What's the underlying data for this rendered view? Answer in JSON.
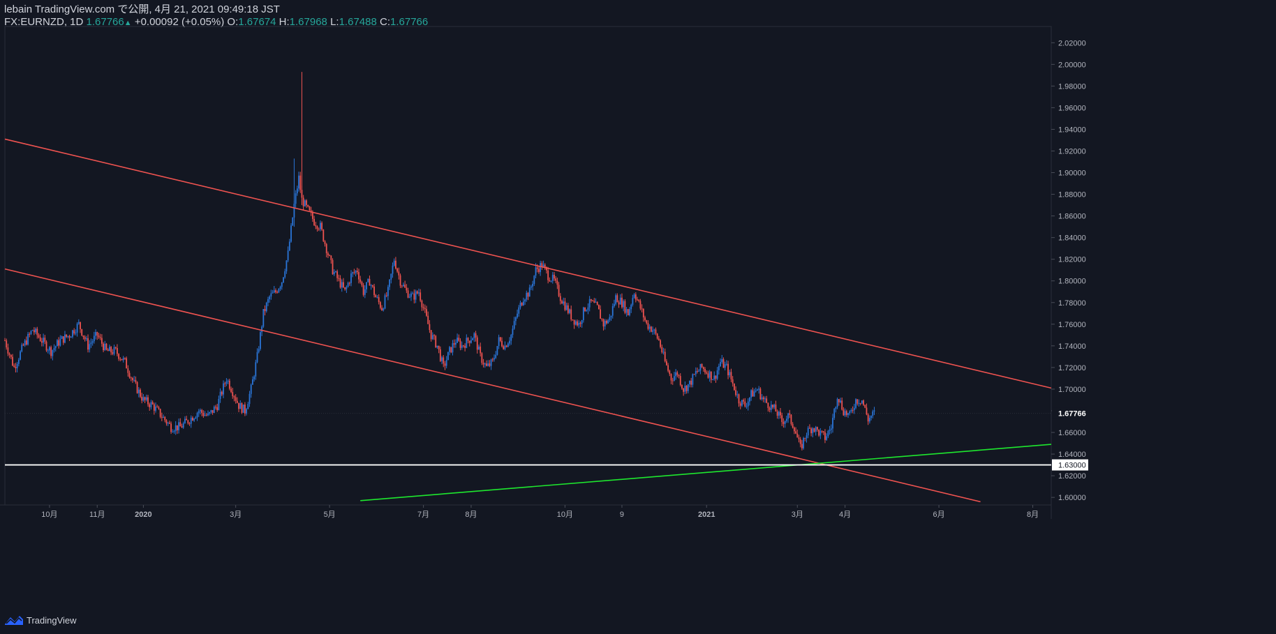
{
  "header": {
    "publish_line": "lebain TradingView.com で公開, 4月 21, 2021 09:49:18 JST",
    "symbol": "FX:EURNZD, 1D",
    "last": "1.67766",
    "change": "+0.00092 (+0.05%)",
    "o_label": "O:",
    "o_value": "1.67674",
    "h_label": "H:",
    "h_value": "1.67968",
    "l_label": "L:",
    "l_value": "1.67488",
    "c_label": "C:",
    "c_value": "1.67766"
  },
  "footer": {
    "brand": "TradingView",
    "logo_icon": "tradingview-logo-icon"
  },
  "chart_data": {
    "type": "candlestick",
    "symbol": "FX:EURNZD",
    "interval": "1D",
    "y_ticks": [
      "2.02000",
      "2.00000",
      "1.98000",
      "1.96000",
      "1.94000",
      "1.92000",
      "1.90000",
      "1.88000",
      "1.86000",
      "1.84000",
      "1.82000",
      "1.80000",
      "1.78000",
      "1.76000",
      "1.74000",
      "1.72000",
      "1.70000",
      "1.68000",
      "1.66000",
      "1.64000",
      "1.62000",
      "1.60000"
    ],
    "ylim": [
      1.593,
      2.035
    ],
    "x_ticks": [
      {
        "label": "10月",
        "d": 29
      },
      {
        "label": "11月",
        "d": 60
      },
      {
        "label": "2020",
        "d": 90
      },
      {
        "label": "3月",
        "d": 150
      },
      {
        "label": "5月",
        "d": 211
      },
      {
        "label": "7月",
        "d": 272
      },
      {
        "label": "8月",
        "d": 303
      },
      {
        "label": "10月",
        "d": 364
      },
      {
        "label": "9",
        "d": 401
      },
      {
        "label": "2021",
        "d": 456
      },
      {
        "label": "3月",
        "d": 515
      },
      {
        "label": "4月",
        "d": 546
      },
      {
        "label": "6月",
        "d": 607
      },
      {
        "label": "8月",
        "d": 668
      }
    ],
    "xlim": [
      0,
      680
    ],
    "price_label": "1.67766",
    "level_label": "1.63000",
    "level": 1.63,
    "colors": {
      "up": "#2a75d8",
      "down": "#ef5350",
      "resistance": "#ef5350",
      "support": "#1ee82e",
      "level": "#ffffff",
      "bg": "#131722"
    },
    "trendlines": [
      {
        "name": "upper-channel",
        "color": "#ef5350",
        "p1": [
          0,
          1.931
        ],
        "p2": [
          680,
          1.701
        ]
      },
      {
        "name": "lower-channel",
        "color": "#ef5350",
        "p1": [
          0,
          1.811
        ],
        "p2": [
          634,
          1.596
        ]
      },
      {
        "name": "support",
        "color": "#1ee82e",
        "p1": [
          231,
          1.597
        ],
        "p2": [
          680,
          1.649
        ]
      }
    ],
    "path": [
      [
        0,
        1.745
      ],
      [
        6,
        1.72
      ],
      [
        12,
        1.74
      ],
      [
        18,
        1.755
      ],
      [
        24,
        1.745
      ],
      [
        30,
        1.735
      ],
      [
        36,
        1.745
      ],
      [
        42,
        1.75
      ],
      [
        48,
        1.76
      ],
      [
        54,
        1.74
      ],
      [
        60,
        1.75
      ],
      [
        66,
        1.735
      ],
      [
        72,
        1.735
      ],
      [
        78,
        1.725
      ],
      [
        84,
        1.705
      ],
      [
        90,
        1.69
      ],
      [
        96,
        1.685
      ],
      [
        102,
        1.675
      ],
      [
        108,
        1.665
      ],
      [
        114,
        1.665
      ],
      [
        120,
        1.672
      ],
      [
        126,
        1.68
      ],
      [
        132,
        1.675
      ],
      [
        138,
        1.685
      ],
      [
        144,
        1.71
      ],
      [
        148,
        1.698
      ],
      [
        152,
        1.685
      ],
      [
        156,
        1.68
      ],
      [
        160,
        1.7
      ],
      [
        164,
        1.73
      ],
      [
        168,
        1.77
      ],
      [
        172,
        1.785
      ],
      [
        176,
        1.79
      ],
      [
        180,
        1.8
      ],
      [
        184,
        1.825
      ],
      [
        188,
        1.87
      ],
      [
        191,
        1.895
      ],
      [
        193,
        1.875
      ],
      [
        197,
        1.865
      ],
      [
        201,
        1.855
      ],
      [
        205,
        1.85
      ],
      [
        209,
        1.83
      ],
      [
        213,
        1.81
      ],
      [
        217,
        1.8
      ],
      [
        221,
        1.79
      ],
      [
        225,
        1.805
      ],
      [
        229,
        1.81
      ],
      [
        233,
        1.79
      ],
      [
        237,
        1.8
      ],
      [
        241,
        1.785
      ],
      [
        245,
        1.775
      ],
      [
        249,
        1.79
      ],
      [
        253,
        1.82
      ],
      [
        257,
        1.8
      ],
      [
        261,
        1.79
      ],
      [
        265,
        1.785
      ],
      [
        269,
        1.79
      ],
      [
        273,
        1.77
      ],
      [
        277,
        1.75
      ],
      [
        281,
        1.74
      ],
      [
        285,
        1.72
      ],
      [
        289,
        1.735
      ],
      [
        293,
        1.745
      ],
      [
        297,
        1.74
      ],
      [
        301,
        1.745
      ],
      [
        305,
        1.75
      ],
      [
        309,
        1.73
      ],
      [
        313,
        1.72
      ],
      [
        317,
        1.725
      ],
      [
        321,
        1.745
      ],
      [
        325,
        1.74
      ],
      [
        329,
        1.75
      ],
      [
        333,
        1.77
      ],
      [
        337,
        1.785
      ],
      [
        341,
        1.79
      ],
      [
        345,
        1.81
      ],
      [
        349,
        1.815
      ],
      [
        353,
        1.805
      ],
      [
        357,
        1.8
      ],
      [
        361,
        1.785
      ],
      [
        365,
        1.775
      ],
      [
        369,
        1.765
      ],
      [
        373,
        1.76
      ],
      [
        377,
        1.775
      ],
      [
        381,
        1.78
      ],
      [
        385,
        1.775
      ],
      [
        389,
        1.76
      ],
      [
        393,
        1.765
      ],
      [
        397,
        1.785
      ],
      [
        401,
        1.78
      ],
      [
        405,
        1.77
      ],
      [
        409,
        1.79
      ],
      [
        413,
        1.775
      ],
      [
        417,
        1.76
      ],
      [
        421,
        1.755
      ],
      [
        425,
        1.745
      ],
      [
        429,
        1.725
      ],
      [
        433,
        1.71
      ],
      [
        437,
        1.715
      ],
      [
        441,
        1.7
      ],
      [
        445,
        1.705
      ],
      [
        449,
        1.715
      ],
      [
        453,
        1.72
      ],
      [
        457,
        1.715
      ],
      [
        461,
        1.71
      ],
      [
        465,
        1.725
      ],
      [
        469,
        1.72
      ],
      [
        473,
        1.705
      ],
      [
        477,
        1.69
      ],
      [
        481,
        1.685
      ],
      [
        485,
        1.695
      ],
      [
        489,
        1.7
      ],
      [
        493,
        1.69
      ],
      [
        497,
        1.685
      ],
      [
        501,
        1.68
      ],
      [
        505,
        1.67
      ],
      [
        509,
        1.675
      ],
      [
        513,
        1.665
      ],
      [
        517,
        1.645
      ],
      [
        521,
        1.66
      ],
      [
        525,
        1.665
      ],
      [
        529,
        1.66
      ],
      [
        533,
        1.655
      ],
      [
        537,
        1.665
      ],
      [
        541,
        1.695
      ],
      [
        545,
        1.68
      ],
      [
        549,
        1.675
      ],
      [
        553,
        1.69
      ],
      [
        557,
        1.69
      ],
      [
        561,
        1.672
      ],
      [
        565,
        1.678
      ]
    ]
  }
}
